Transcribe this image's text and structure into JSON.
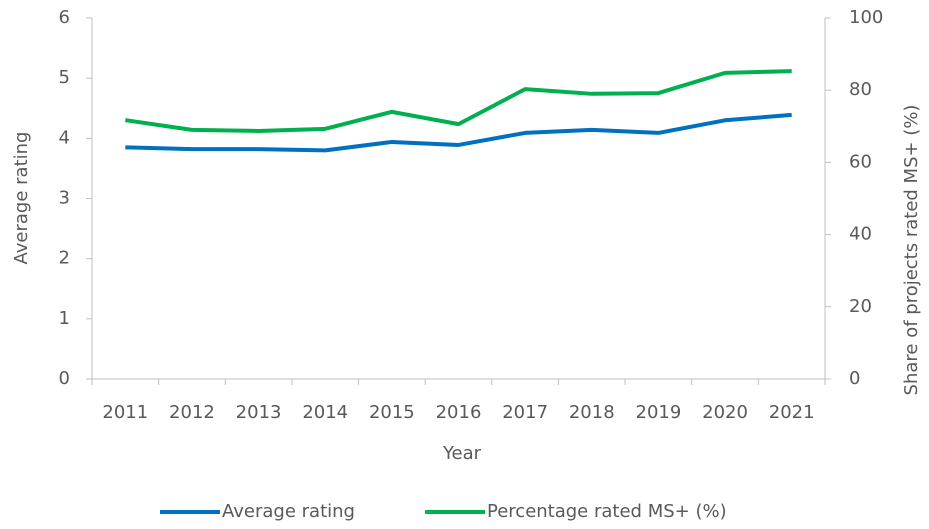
{
  "chart_data": {
    "type": "line",
    "x_label": "Year",
    "y_label": "Average rating",
    "y2_label": "Share of projects rated MS+ (%)",
    "categories": [
      "2011",
      "2012",
      "2013",
      "2014",
      "2015",
      "2016",
      "2017",
      "2018",
      "2019",
      "2020",
      "2021"
    ],
    "series": [
      {
        "name": "Average rating",
        "color": "#0070c0",
        "values": [
          3.85,
          3.82,
          3.82,
          3.8,
          3.94,
          3.89,
          4.09,
          4.14,
          4.09,
          4.3,
          4.39
        ]
      },
      {
        "name": "Percentage rated MS+ (%)",
        "color": "#00b050",
        "axis": "y2",
        "values": [
          71.7,
          69,
          68.7,
          69.3,
          74,
          70.6,
          80.3,
          79,
          79.2,
          84.8,
          85.3
        ]
      }
    ],
    "ylim": [
      0,
      6
    ],
    "yticks": [
      0,
      1,
      2,
      3,
      4,
      5,
      6
    ],
    "y2lim": [
      0,
      100
    ],
    "y2ticks": [
      0,
      20,
      40,
      60,
      80,
      100
    ],
    "legend": "bottom"
  }
}
